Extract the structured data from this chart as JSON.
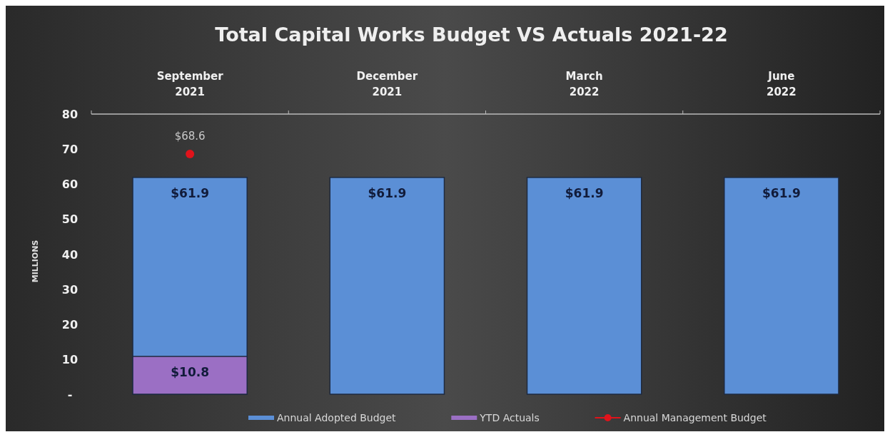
{
  "chart_data": {
    "type": "bar",
    "title": "Total Capital Works Budget VS Actuals 2021-22",
    "ylabel": "MILLIONS",
    "categories": [
      "September\n2021",
      "December\n2021",
      "March\n2022",
      "June\n2022"
    ],
    "series": [
      {
        "name": "Annual Adopted Budget",
        "color": "#5b8fd6",
        "values": [
          61.9,
          61.9,
          61.9,
          61.9
        ],
        "value_labels": [
          "$61.9",
          "$61.9",
          "$61.9",
          "$61.9"
        ]
      },
      {
        "name": "YTD Actuals",
        "color": "#9b6fc4",
        "values": [
          10.8,
          null,
          null,
          null
        ],
        "value_labels": [
          "$10.8",
          null,
          null,
          null
        ]
      },
      {
        "name": "Annual Management Budget",
        "type": "line",
        "marker": "circle",
        "color": "#e0131b",
        "values": [
          68.6,
          null,
          null,
          null
        ],
        "value_labels": [
          "$68.6",
          null,
          null,
          null
        ]
      }
    ],
    "ylim": [
      0,
      80
    ],
    "yticks": [
      {
        "value": 0,
        "label": "-"
      },
      10,
      20,
      30,
      40,
      50,
      60,
      70,
      80
    ],
    "grid": false,
    "legend": "bottom"
  }
}
